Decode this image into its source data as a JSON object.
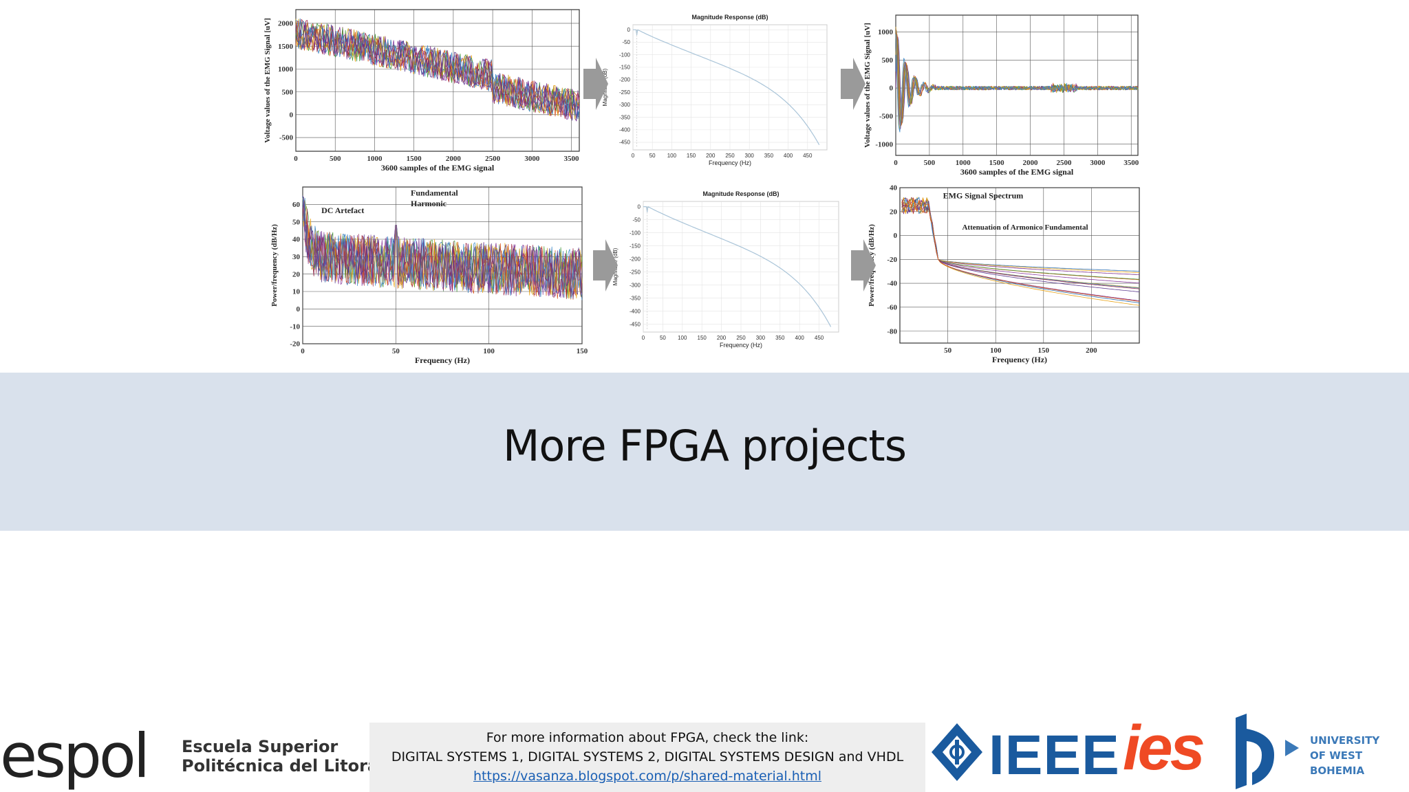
{
  "band": {
    "title": "More FPGA projects"
  },
  "footer": {
    "line1": "For more information about FPGA, check the link:",
    "line2": "DIGITAL SYSTEMS 1, DIGITAL SYSTEMS 2, DIGITAL SYSTEMS DESIGN and VHDL",
    "link": "https://vasanza.blogspot.com/p/shared-material.html"
  },
  "logos": {
    "espol_word": "espol",
    "espol_sub1": "Escuela Superior",
    "espol_sub2": "Politécnica del Litoral",
    "ieee": "IEEE",
    "ies": "ies",
    "uwb1": "UNIVERSITY",
    "uwb2": "OF WEST BOHEMIA",
    "ieee_color": "#1a5a9e",
    "ies_color": "#ef4a24",
    "uwb_color": "#3b79b8"
  },
  "chart_data": [
    {
      "type": "line",
      "ylabel": "Voltage values of the EMG Signal [uV]",
      "xlabel": "3600 samples of the EMG signal",
      "xticks": [
        0,
        500,
        1000,
        1500,
        2000,
        2500,
        3000,
        3500
      ],
      "yticks": [
        -500,
        0,
        500,
        1000,
        1500,
        2000
      ],
      "xlim": [
        0,
        3600
      ],
      "ylim": [
        -800,
        2300
      ],
      "grid": true
    },
    {
      "type": "line",
      "title": "Magnitude Response (dB)",
      "xlabel": "Frequency (Hz)",
      "ylabel": "Magnitude (dB)",
      "xticks": [
        0,
        50,
        100,
        150,
        200,
        250,
        300,
        350,
        400,
        450
      ],
      "yticks": [
        0,
        -50,
        -100,
        -150,
        -200,
        -250,
        -300,
        -350,
        -400,
        -450
      ],
      "xlim": [
        0,
        500
      ],
      "ylim": [
        -480,
        20
      ],
      "grid": true
    },
    {
      "type": "line",
      "ylabel": "Voltage values of the EMG Signal [uV]",
      "xlabel": "3600 samples of the EMG signal",
      "xticks": [
        0,
        500,
        1000,
        1500,
        2000,
        2500,
        3000,
        3500
      ],
      "yticks": [
        1000,
        500,
        0,
        -500,
        -1000
      ],
      "xlim": [
        0,
        3600
      ],
      "ylim": [
        -1200,
        1300
      ],
      "grid": true
    },
    {
      "type": "line",
      "ylabel": "Power/frequency (dB/Hz)",
      "xlabel": "Frequency (Hz)",
      "xticks": [
        0,
        50,
        100,
        150
      ],
      "yticks": [
        60,
        50,
        40,
        30,
        20,
        10,
        0,
        -10,
        -20
      ],
      "xlim": [
        0,
        150
      ],
      "ylim": [
        -20,
        70
      ],
      "grid": true,
      "annotations": [
        "DC Artefact",
        "Fundamental",
        "Harmonic"
      ]
    },
    {
      "type": "line",
      "title": "Magnitude Response (dB)",
      "xlabel": "Frequency (Hz)",
      "ylabel": "Magnitude (dB)",
      "xticks": [
        0,
        50,
        100,
        150,
        200,
        250,
        300,
        350,
        400,
        450
      ],
      "yticks": [
        0,
        -50,
        -100,
        -150,
        -200,
        -250,
        -300,
        -350,
        -400,
        -450
      ],
      "xlim": [
        0,
        500
      ],
      "ylim": [
        -480,
        20
      ],
      "grid": true
    },
    {
      "type": "line",
      "ylabel": "Power/frequency (dB/Hz)",
      "xlabel": "Frequency (Hz)",
      "xticks": [
        50,
        100,
        150,
        200
      ],
      "yticks": [
        40,
        20,
        0,
        -20,
        -40,
        -60,
        -80
      ],
      "xlim": [
        0,
        250
      ],
      "ylim": [
        -90,
        40
      ],
      "grid": true,
      "annotations": [
        "EMG Signal Spectrum",
        "Attenuation of Armonico Fundamental"
      ]
    }
  ]
}
